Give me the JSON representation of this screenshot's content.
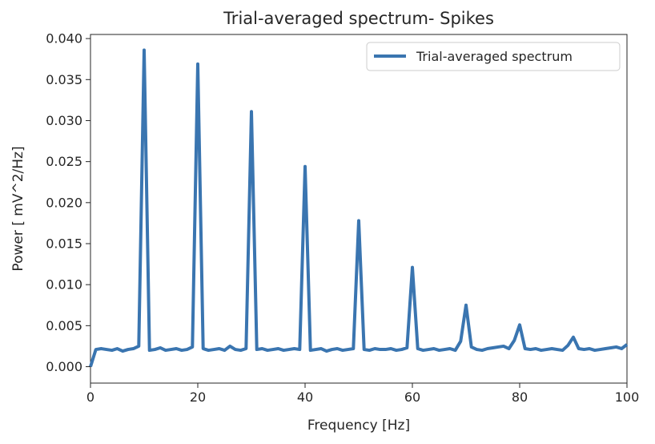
{
  "chart_data": {
    "type": "line",
    "title": "Trial-averaged spectrum- Spikes",
    "xlabel": "Frequency [Hz]",
    "ylabel": "Power [ mV^2/Hz]",
    "xlim": [
      0,
      100
    ],
    "ylim": [
      -0.002,
      0.0405
    ],
    "xticks": [
      0,
      20,
      40,
      60,
      80,
      100
    ],
    "xtick_labels": [
      "0",
      "20",
      "40",
      "60",
      "80",
      "100"
    ],
    "yticks": [
      0.0,
      0.005,
      0.01,
      0.015,
      0.02,
      0.025,
      0.03,
      0.035,
      0.04
    ],
    "ytick_labels": [
      "0.000",
      "0.005",
      "0.010",
      "0.015",
      "0.020",
      "0.025",
      "0.030",
      "0.035",
      "0.040"
    ],
    "grid": false,
    "legend_position": "upper right",
    "series": [
      {
        "name": "Trial-averaged spectrum",
        "color": "#3a75b0",
        "x": [
          0,
          1,
          2,
          3,
          4,
          5,
          6,
          7,
          8,
          9,
          10,
          11,
          12,
          13,
          14,
          15,
          16,
          17,
          18,
          19,
          20,
          21,
          22,
          23,
          24,
          25,
          26,
          27,
          28,
          29,
          30,
          31,
          32,
          33,
          34,
          35,
          36,
          37,
          38,
          39,
          40,
          41,
          42,
          43,
          44,
          45,
          46,
          47,
          48,
          49,
          50,
          51,
          52,
          53,
          54,
          55,
          56,
          57,
          58,
          59,
          60,
          61,
          62,
          63,
          64,
          65,
          66,
          67,
          68,
          69,
          70,
          71,
          72,
          73,
          74,
          75,
          76,
          77,
          78,
          79,
          80,
          81,
          82,
          83,
          84,
          85,
          86,
          87,
          88,
          89,
          90,
          91,
          92,
          93,
          94,
          95,
          96,
          97,
          98,
          99,
          100
        ],
        "y": [
          0.0,
          0.0021,
          0.0022,
          0.0021,
          0.002,
          0.0022,
          0.0019,
          0.0021,
          0.0022,
          0.0025,
          0.0386,
          0.002,
          0.0021,
          0.0023,
          0.002,
          0.0021,
          0.0022,
          0.002,
          0.0021,
          0.0024,
          0.0369,
          0.0022,
          0.002,
          0.0021,
          0.0022,
          0.002,
          0.0025,
          0.0021,
          0.002,
          0.0022,
          0.0311,
          0.0021,
          0.0022,
          0.002,
          0.0021,
          0.0022,
          0.002,
          0.0021,
          0.0022,
          0.0021,
          0.0244,
          0.002,
          0.0021,
          0.0022,
          0.0019,
          0.0021,
          0.0022,
          0.002,
          0.0021,
          0.0022,
          0.0178,
          0.0021,
          0.002,
          0.0022,
          0.0021,
          0.0021,
          0.0022,
          0.002,
          0.0021,
          0.0023,
          0.0121,
          0.0022,
          0.002,
          0.0021,
          0.0022,
          0.002,
          0.0021,
          0.0022,
          0.002,
          0.0031,
          0.0075,
          0.0024,
          0.0021,
          0.002,
          0.0022,
          0.0023,
          0.0024,
          0.0025,
          0.0022,
          0.0032,
          0.0051,
          0.0022,
          0.0021,
          0.0022,
          0.002,
          0.0021,
          0.0022,
          0.0021,
          0.002,
          0.0026,
          0.0036,
          0.0022,
          0.0021,
          0.0022,
          0.002,
          0.0021,
          0.0022,
          0.0023,
          0.0024,
          0.0022,
          0.0027
        ]
      }
    ]
  }
}
